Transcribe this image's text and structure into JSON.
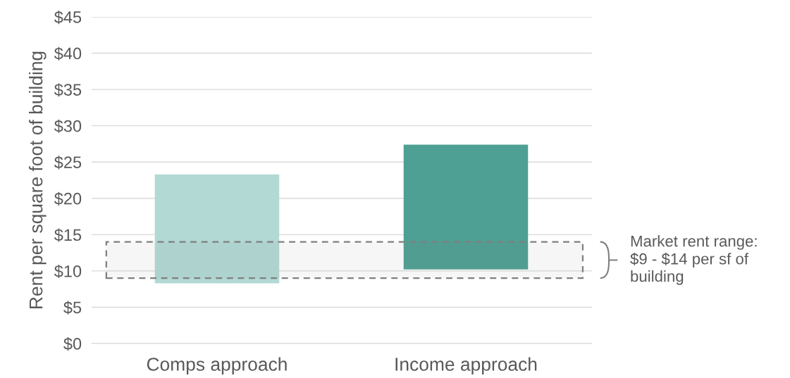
{
  "chart_data": {
    "type": "bar",
    "ylabel": "Rent per square foot of building",
    "categories": [
      "Comps approach",
      "Income approach"
    ],
    "values": [
      15.0,
      17.2
    ],
    "base": [
      8.3,
      10.2
    ],
    "colors": [
      "#b2d9d4",
      "#4fa094"
    ],
    "ylim": [
      0,
      45
    ],
    "yticks": [
      {
        "value": 0,
        "label": "$0"
      },
      {
        "value": 5,
        "label": "$5"
      },
      {
        "value": 10,
        "label": "$10"
      },
      {
        "value": 15,
        "label": "$15"
      },
      {
        "value": 20,
        "label": "$20"
      },
      {
        "value": 25,
        "label": "$25"
      },
      {
        "value": 30,
        "label": "$30"
      },
      {
        "value": 35,
        "label": "$35"
      },
      {
        "value": 40,
        "label": "$40"
      },
      {
        "value": 45,
        "label": "$45"
      }
    ],
    "grid": "y",
    "bands": [
      {
        "axis": "y",
        "from": 9,
        "to": 14,
        "label": "Market rent range:\n$9 - $14 per sf of\nbuilding",
        "color": "#7f7f7f"
      }
    ]
  }
}
